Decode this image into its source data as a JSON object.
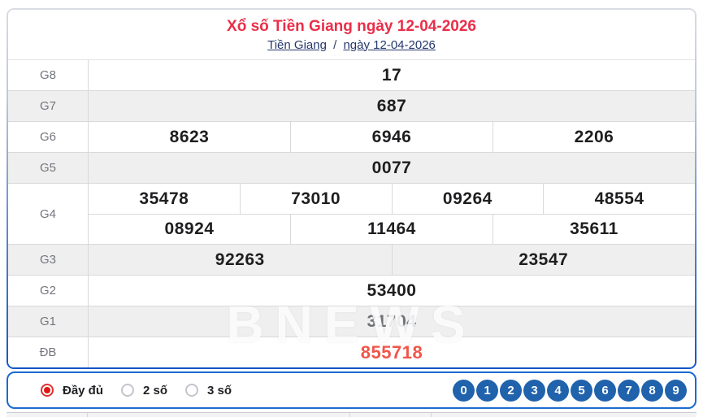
{
  "header": {
    "title": "Xổ số Tiền Giang ngày 12-04-2026",
    "province_link": "Tiền Giang",
    "separator": "/",
    "date_link": "ngày 12-04-2026"
  },
  "results": {
    "rows": [
      {
        "label": "G8",
        "shade": false,
        "lines": [
          [
            "17"
          ]
        ]
      },
      {
        "label": "G7",
        "shade": true,
        "lines": [
          [
            "687"
          ]
        ]
      },
      {
        "label": "G6",
        "shade": false,
        "lines": [
          [
            "8623",
            "6946",
            "2206"
          ]
        ]
      },
      {
        "label": "G5",
        "shade": true,
        "lines": [
          [
            "0077"
          ]
        ]
      },
      {
        "label": "G4",
        "shade": false,
        "lines": [
          [
            "35478",
            "73010",
            "09264",
            "48554"
          ],
          [
            "08924",
            "11464",
            "35611"
          ]
        ]
      },
      {
        "label": "G3",
        "shade": true,
        "lines": [
          [
            "92263",
            "23547"
          ]
        ]
      },
      {
        "label": "G2",
        "shade": false,
        "lines": [
          [
            "53400"
          ]
        ]
      },
      {
        "label": "G1",
        "shade": true,
        "muted": true,
        "lines": [
          [
            "31704"
          ]
        ]
      },
      {
        "label": "ĐB",
        "shade": false,
        "special": true,
        "lines": [
          [
            "855718"
          ]
        ]
      }
    ]
  },
  "watermark": "BNEWS",
  "footer": {
    "options": [
      {
        "label": "Đầy đủ",
        "selected": true
      },
      {
        "label": "2 số",
        "selected": false
      },
      {
        "label": "3 số",
        "selected": false
      }
    ],
    "digits": [
      "0",
      "1",
      "2",
      "3",
      "4",
      "5",
      "6",
      "7",
      "8",
      "9"
    ]
  },
  "colors": {
    "title_red": "#ea2e49",
    "special_red": "#f0554a",
    "link_navy": "#25376e",
    "circle_blue": "#2062ac",
    "border_blue": "#1b6ad0",
    "row_shade": "#efefef",
    "radio_selected_red": "#e01717"
  }
}
